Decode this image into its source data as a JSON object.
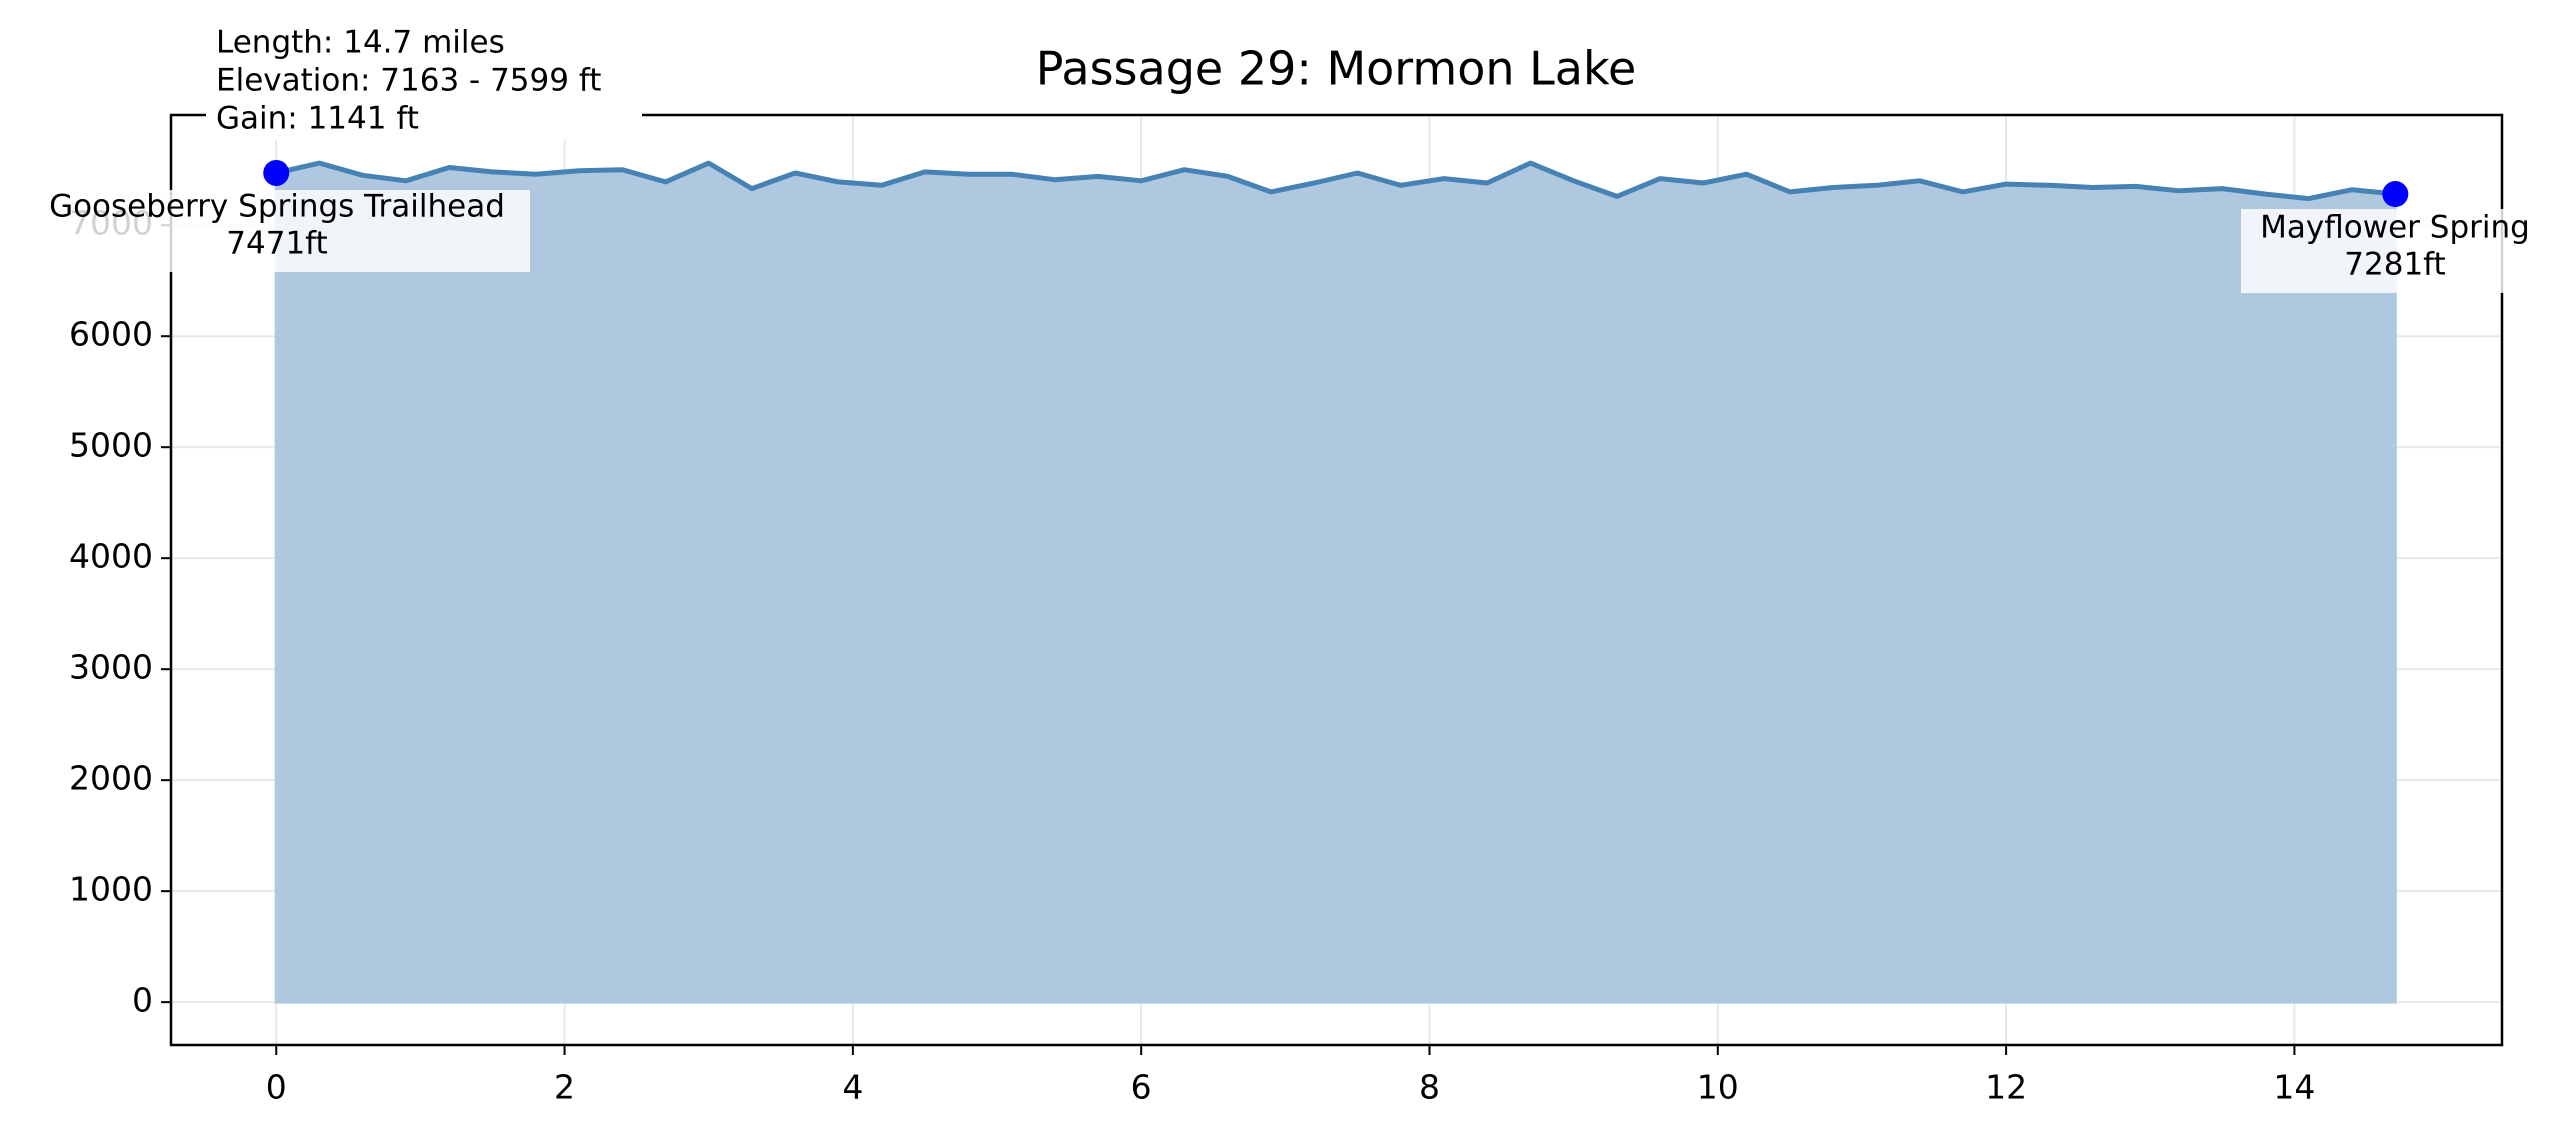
{
  "chart_data": {
    "type": "area",
    "title": "Passage 29: Mormon Lake",
    "info_lines": [
      "Length: 14.7 miles",
      "Elevation: 7163 - 7599 ft",
      "Gain: 1141 ft"
    ],
    "x": [
      0,
      0.3,
      0.6,
      0.9,
      1.2,
      1.5,
      1.8,
      2.1,
      2.4,
      2.7,
      3.0,
      3.3,
      3.6,
      3.9,
      4.2,
      4.5,
      4.8,
      5.1,
      5.4,
      5.7,
      6.0,
      6.3,
      6.6,
      6.9,
      7.2,
      7.5,
      7.8,
      8.1,
      8.4,
      8.7,
      9.0,
      9.3,
      9.6,
      9.9,
      10.2,
      10.5,
      10.8,
      11.1,
      11.4,
      11.7,
      12.0,
      12.3,
      12.6,
      12.9,
      13.2,
      13.5,
      13.8,
      14.1,
      14.4,
      14.7
    ],
    "series": [
      {
        "color": "#4682b4",
        "fill": "#b0c8df",
        "values": [
          7471,
          7560,
          7450,
          7400,
          7520,
          7480,
          7460,
          7490,
          7500,
          7390,
          7560,
          7330,
          7470,
          7390,
          7360,
          7480,
          7460,
          7460,
          7410,
          7440,
          7400,
          7500,
          7440,
          7300,
          7380,
          7470,
          7360,
          7420,
          7380,
          7560,
          7400,
          7260,
          7420,
          7380,
          7460,
          7300,
          7340,
          7360,
          7400,
          7300,
          7370,
          7360,
          7340,
          7350,
          7310,
          7330,
          7280,
          7240,
          7320,
          7281
        ]
      }
    ],
    "annotations": [
      {
        "label": "Gooseberry Springs Trailhead",
        "x": 0,
        "y": 7471,
        "value_label": "7471ft",
        "color": "#0000ff"
      },
      {
        "label": "Mayflower Spring",
        "x": 14.7,
        "y": 7281,
        "value_label": "7281ft",
        "color": "#0000ff"
      }
    ],
    "xlim": [
      -0.73,
      15.44
    ],
    "ylim": [
      -386,
      7993
    ],
    "xticks": [
      0,
      2,
      4,
      6,
      8,
      10,
      12,
      14
    ],
    "yticks": [
      0,
      1000,
      2000,
      3000,
      4000,
      5000,
      6000,
      7000
    ],
    "grid": true
  }
}
